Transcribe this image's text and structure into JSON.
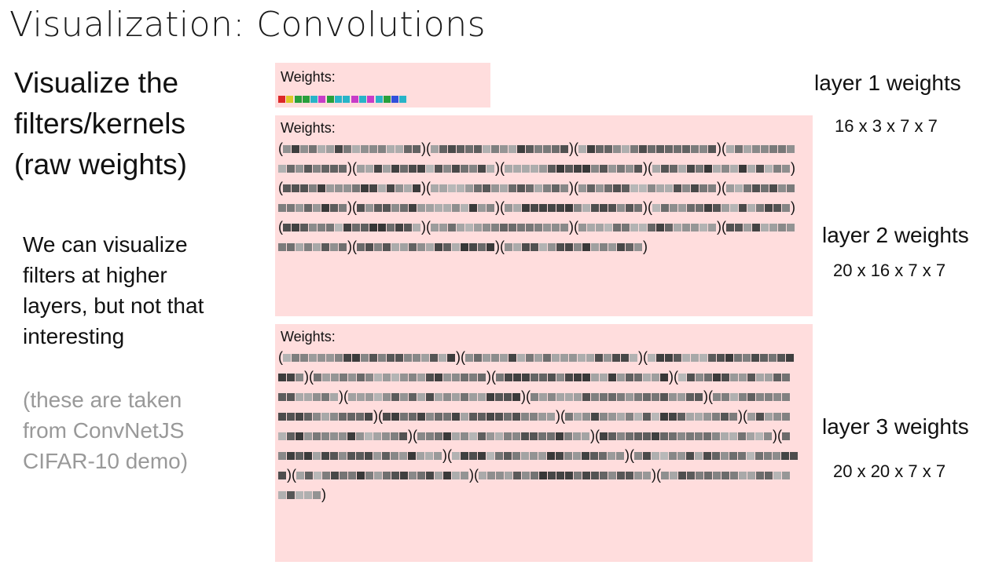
{
  "slide": {
    "title": "Visualization: Convolutions",
    "lead": "Visualize the filters/kernels (raw weights)",
    "body": "We can visualize filters at higher layers, but not that interesting",
    "note": "(these are taken from ConvNetJS CIFAR-10 demo)"
  },
  "panels": [
    {
      "label": "Weights:",
      "layer_title": "layer 1 weights",
      "dims": "16 x 3 x 7 x 7",
      "filters": 16,
      "channels": 3,
      "colored": true
    },
    {
      "label": "Weights:",
      "layer_title": "layer 2 weights",
      "dims": "20 x 16 x 7 x 7",
      "filters": 20,
      "channels": 16,
      "colored": false
    },
    {
      "label": "Weights:",
      "layer_title": "layer 3 weights",
      "dims": "20 x 20 x 7 x 7",
      "filters": 20,
      "channels": 20,
      "colored": false
    }
  ],
  "colors": {
    "panel_background": "#ffdddd",
    "note_text": "#999999"
  },
  "icons": [
    "filter-thumbnail-icon"
  ]
}
